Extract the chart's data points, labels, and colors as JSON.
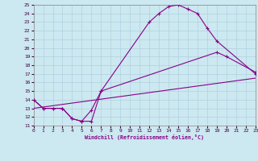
{
  "bg_color": "#cce8f0",
  "line_color": "#880088",
  "grid_color": "#aaccdd",
  "xlabel": "Windchill (Refroidissement éolien,°C)",
  "xlim": [
    0,
    23
  ],
  "ylim": [
    11,
    25
  ],
  "xticks": [
    0,
    1,
    2,
    3,
    4,
    5,
    6,
    7,
    8,
    9,
    10,
    11,
    12,
    13,
    14,
    15,
    16,
    17,
    18,
    19,
    20,
    21,
    22,
    23
  ],
  "yticks": [
    11,
    12,
    13,
    14,
    15,
    16,
    17,
    18,
    19,
    20,
    21,
    22,
    23,
    24,
    25
  ],
  "curve1_x": [
    0,
    1,
    2,
    3,
    4,
    5,
    6,
    7,
    12,
    13,
    14,
    15,
    16,
    17,
    18,
    19,
    23
  ],
  "curve1_y": [
    14,
    13,
    13,
    13,
    11.8,
    11.5,
    11.5,
    15,
    23,
    24,
    24.8,
    25,
    24.5,
    24,
    22.3,
    20.8,
    17
  ],
  "curve2_x": [
    0,
    1,
    2,
    3,
    4,
    5,
    6,
    7,
    19,
    20,
    23
  ],
  "curve2_y": [
    14,
    13,
    13,
    13,
    11.8,
    11.5,
    12.8,
    15.0,
    19.5,
    19.0,
    17.2
  ],
  "curve3_x": [
    0,
    23
  ],
  "curve3_y": [
    13.0,
    16.5
  ]
}
